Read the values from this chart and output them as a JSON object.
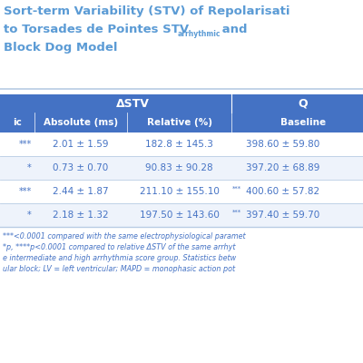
{
  "title_color": "#5B9BD5",
  "header_bg_color": "#4472C4",
  "header_text_color": "#FFFFFF",
  "row_bg_colors": [
    "#FFFFFF",
    "#EEF3FB",
    "#FFFFFF",
    "#EEF3FB"
  ],
  "col_header_row1_left": "ΔSTV",
  "col_header_row1_right": "Q",
  "col_header_row2": [
    "ic",
    "Absolute (ms)",
    "Relative (%)",
    "Baseline"
  ],
  "data_rows": [
    [
      "***",
      "2.01 ± 1.59",
      "182.8 ± 145.3",
      "",
      "398.60 ± 59.80"
    ],
    [
      "*",
      "0.73 ± 0.70",
      "90.83 ± 90.28",
      "",
      "397.20 ± 68.89"
    ],
    [
      "***",
      "2.44 ± 1.87",
      "211.10 ± 155.10",
      "***",
      "400.60 ± 57.82"
    ],
    [
      "*",
      "2.18 ± 1.32",
      "197.50 ± 143.60",
      "***",
      "397.40 ± 59.70"
    ]
  ],
  "footnote_lines": [
    "***<0.0001 compared with the same electrophysiological paramet",
    "*p, ****p<0.0001 compared to relative ΔSTV of the same arrhyt",
    "e intermediate and high arrhythmia score group. Statistics betw",
    "ular block; LV = left ventricular; MAPD = monophasic action pot"
  ],
  "data_text_color": "#4472C4",
  "footnote_color": "#4472C4",
  "bg_color": "#FFFFFF",
  "separator_color": "#B8CCE4",
  "title_line1": "ort-term Variability (STV) of Repolarisati",
  "title_line2_main": "to Torsades de Pointes STV",
  "title_line2_sub": "arrhythmic",
  "title_line2_end": " and ",
  "title_line3": "Block Dog Model",
  "title_prefix": "S"
}
